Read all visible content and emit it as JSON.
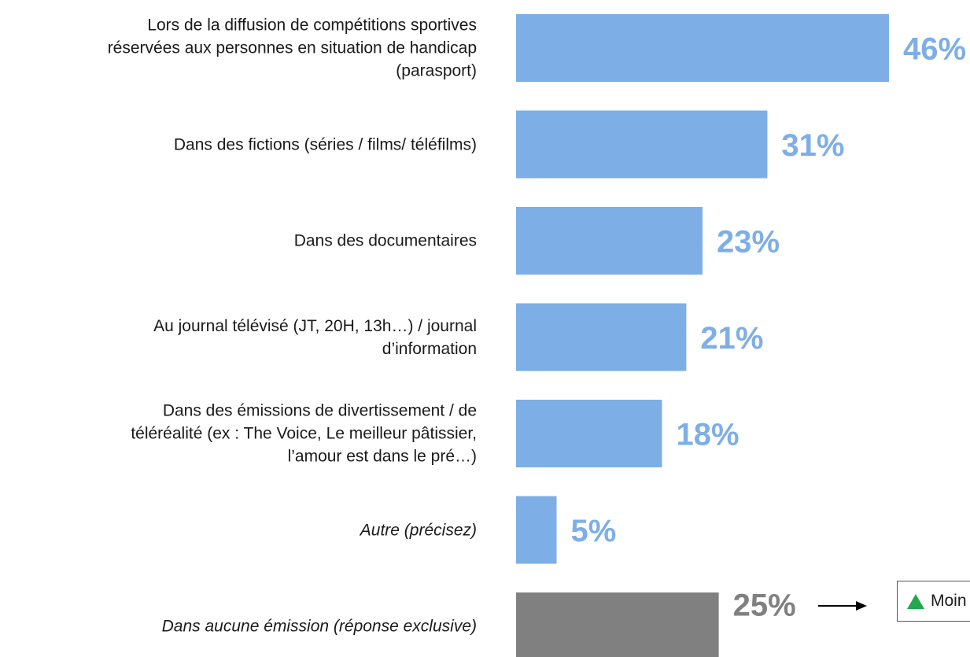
{
  "chart_data": {
    "type": "bar",
    "orientation": "horizontal",
    "categories": [
      "Lors de la diffusion de compétitions sportives\nréservées aux personnes en situation de handicap\n(parasport)",
      "Dans des fictions (séries / films/ téléfilms)",
      "Dans des documentaires",
      "Au journal télévisé (JT, 20H, 13h…) / journal\nd’information",
      "Dans des émissions de divertissement / de\ntéléréalité (ex : The Voice, Le meilleur pâtissier,\nl’amour est dans le pré…)",
      "Autre (précisez)",
      "Dans aucune émission (réponse exclusive)"
    ],
    "values": [
      46,
      31,
      23,
      21,
      18,
      5,
      25
    ],
    "value_labels": [
      "46%",
      "31%",
      "23%",
      "21%",
      "18%",
      "5%",
      "25%"
    ],
    "colors": [
      "#7eaee6",
      "#7eaee6",
      "#7eaee6",
      "#7eaee6",
      "#7eaee6",
      "#7eaee6",
      "#808080"
    ],
    "annotation": "Moin"
  }
}
